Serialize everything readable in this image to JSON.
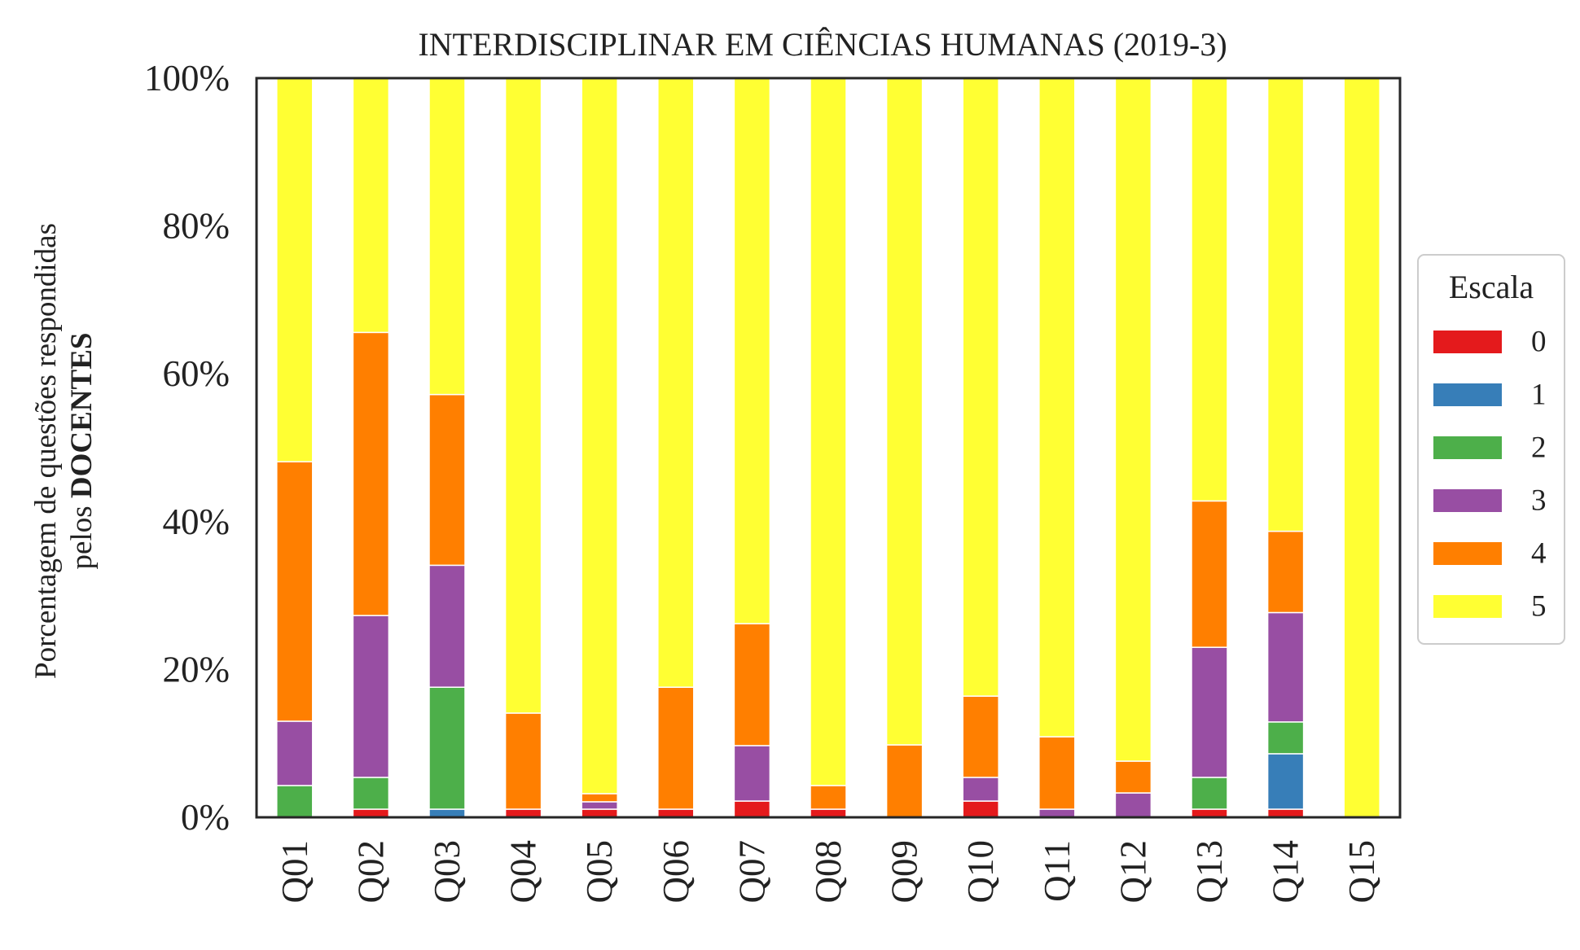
{
  "chart_data": {
    "type": "bar",
    "stacked": true,
    "title": "INTERDISCIPLINAR EM CIÊNCIAS HUMANAS (2019-3)",
    "ylabel_line1": "Porcentagem de questões respondidas",
    "ylabel_line2_prefix": "pelos ",
    "ylabel_line2_bold": "DOCENTES",
    "xlabel": "",
    "ylim": [
      0,
      100
    ],
    "yticks": [
      "0%",
      "20%",
      "40%",
      "60%",
      "80%",
      "100%"
    ],
    "ytick_values": [
      0,
      20,
      40,
      60,
      80,
      100
    ],
    "grid": false,
    "legend_title": "Escala",
    "legend_position": "right",
    "categories": [
      "Q01",
      "Q02",
      "Q03",
      "Q04",
      "Q05",
      "Q06",
      "Q07",
      "Q08",
      "Q09",
      "Q10",
      "Q11",
      "Q12",
      "Q13",
      "Q14",
      "Q15"
    ],
    "series": [
      {
        "name": "0",
        "color": "#e41a1c",
        "values": [
          0,
          1.1,
          0,
          1.1,
          1.1,
          1.1,
          2.2,
          1.1,
          0,
          2.2,
          0,
          0,
          1.1,
          1.1,
          0
        ]
      },
      {
        "name": "1",
        "color": "#377eb8",
        "values": [
          0,
          0,
          1.1,
          0,
          0,
          0,
          0,
          0,
          0,
          0,
          0,
          0,
          0,
          7.5,
          0
        ]
      },
      {
        "name": "2",
        "color": "#4daf4a",
        "values": [
          4.3,
          4.3,
          16.5,
          0,
          0,
          0,
          0,
          0,
          0,
          0,
          0,
          0,
          4.3,
          4.3,
          0
        ]
      },
      {
        "name": "3",
        "color": "#984ea3",
        "values": [
          8.7,
          21.9,
          16.5,
          0,
          1.0,
          0,
          7.5,
          0,
          0,
          3.2,
          1.1,
          3.3,
          17.6,
          14.8,
          0
        ]
      },
      {
        "name": "4",
        "color": "#ff7f00",
        "values": [
          35.1,
          38.3,
          23.1,
          13.0,
          1.1,
          16.5,
          16.5,
          3.2,
          9.8,
          11.0,
          9.8,
          4.3,
          19.8,
          11.0,
          0
        ]
      },
      {
        "name": "5",
        "color": "#ffff33",
        "values": [
          51.9,
          34.4,
          42.8,
          85.9,
          96.8,
          82.4,
          73.8,
          95.7,
          90.2,
          83.6,
          89.1,
          92.4,
          57.2,
          61.3,
          100
        ]
      }
    ]
  }
}
